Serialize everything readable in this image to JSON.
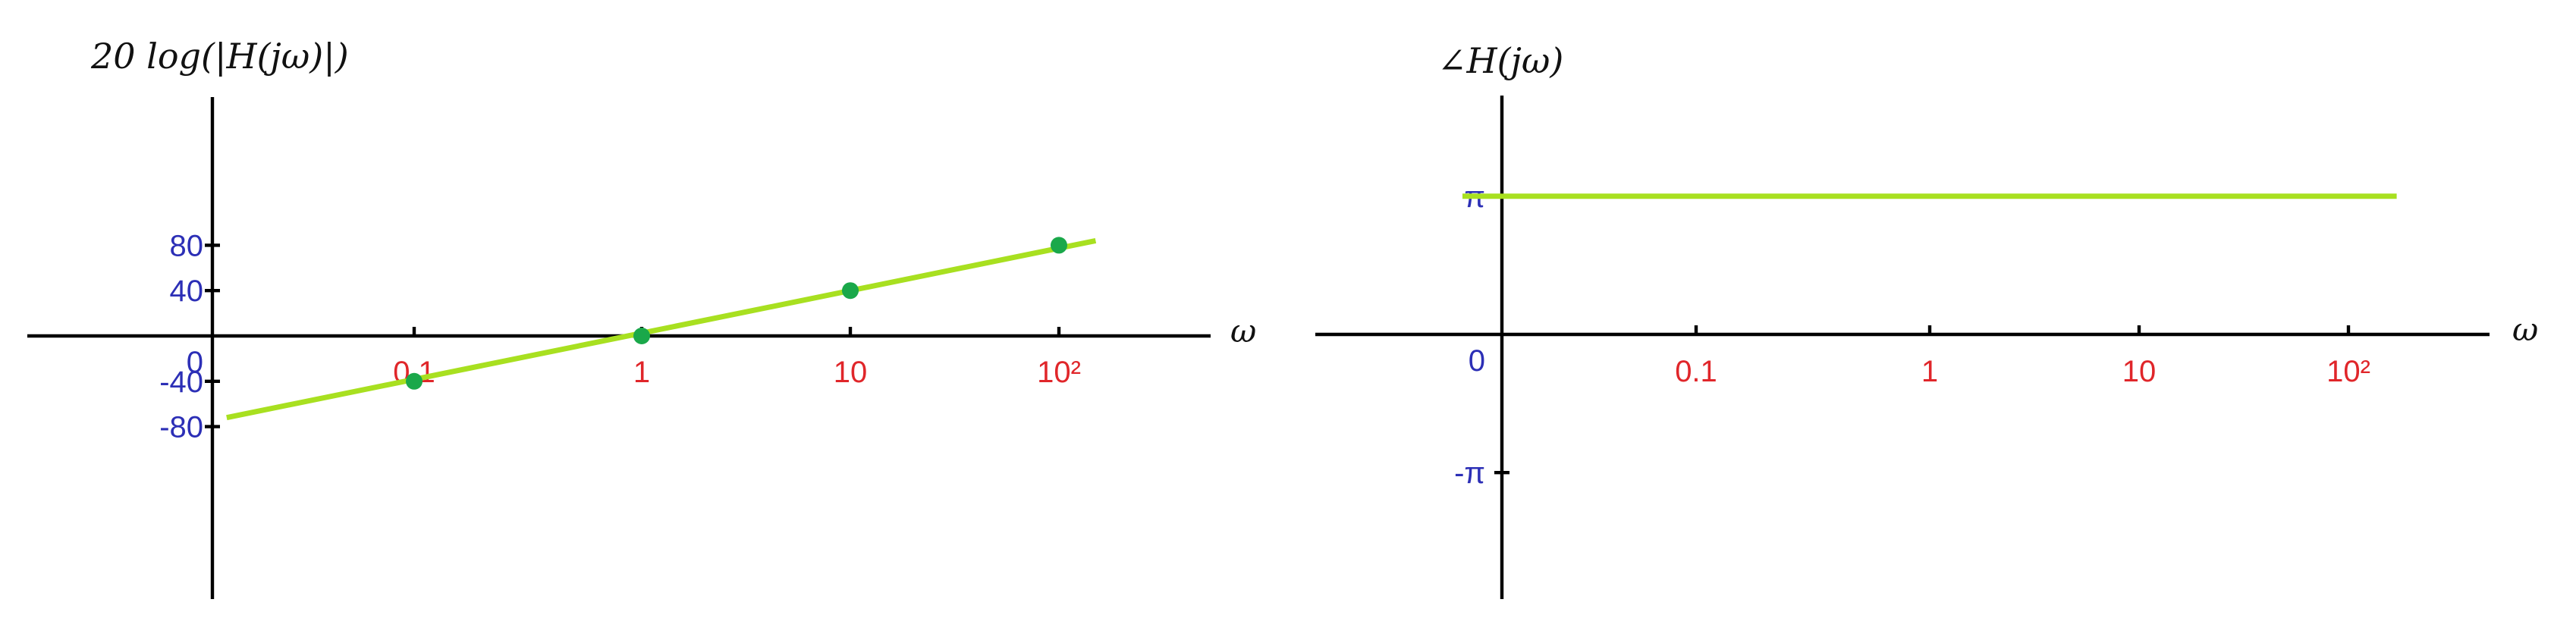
{
  "colors": {
    "axis": "#000000",
    "ytick": "#2c2fb6",
    "xtick": "#e0262a",
    "line": "#a8e020",
    "point": "#1aa84a"
  },
  "chart_data": [
    {
      "type": "line",
      "ylabel": "20 log(|H(jω)|)",
      "xlabel": "ω",
      "x_scale": "log",
      "xticks": [
        "0.1",
        "1",
        "10",
        "10²"
      ],
      "xtick_values": [
        0.1,
        1,
        10,
        100
      ],
      "yticks": [
        "80",
        "40",
        "0",
        "-40",
        "-80"
      ],
      "ytick_values": [
        80,
        40,
        0,
        -40,
        -80
      ],
      "ylim": [
        -100,
        100
      ],
      "series": [
        {
          "x": [
            0.015,
            150
          ],
          "y": [
            -72,
            84
          ],
          "points": [
            {
              "x": 0.1,
              "y": -40
            },
            {
              "x": 1,
              "y": 0
            },
            {
              "x": 10,
              "y": 40
            },
            {
              "x": 100,
              "y": 80
            }
          ]
        }
      ]
    },
    {
      "type": "line",
      "ylabel": "∠H(jω)",
      "xlabel": "ω",
      "x_scale": "log",
      "xticks": [
        "0.1",
        "1",
        "10",
        "10²"
      ],
      "xtick_values": [
        0.1,
        1,
        10,
        100
      ],
      "yticks": [
        "π",
        "0",
        "-π"
      ],
      "ytick_values": [
        3.14159,
        0,
        -3.14159
      ],
      "ylim": [
        -5.5,
        5.5
      ],
      "series": [
        {
          "x": [
            0.01,
            170
          ],
          "y": [
            3.14159,
            3.14159
          ]
        }
      ]
    }
  ]
}
